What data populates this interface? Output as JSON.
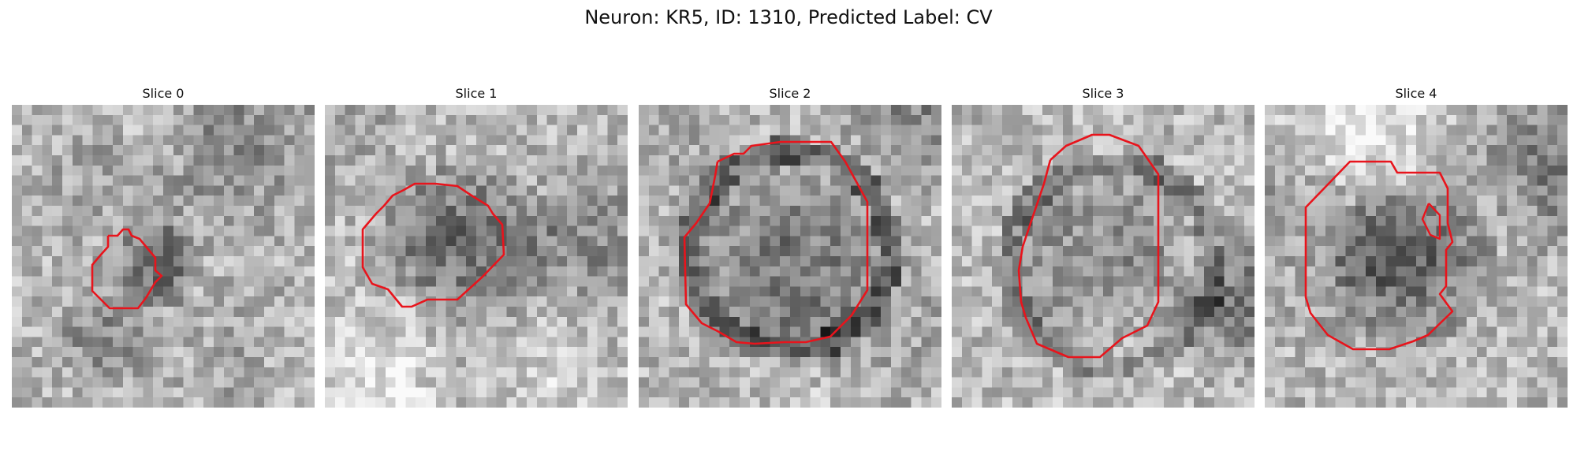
{
  "figure": {
    "title": "Neuron: KR5, ID: 1310, Predicted Label: CV",
    "contour_color": "#e8141c",
    "colormap": "grayscale",
    "panels": [
      {
        "title": "Slice 0"
      },
      {
        "title": "Slice 1"
      },
      {
        "title": "Slice 2"
      },
      {
        "title": "Slice 3"
      },
      {
        "title": "Slice 4"
      }
    ]
  }
}
